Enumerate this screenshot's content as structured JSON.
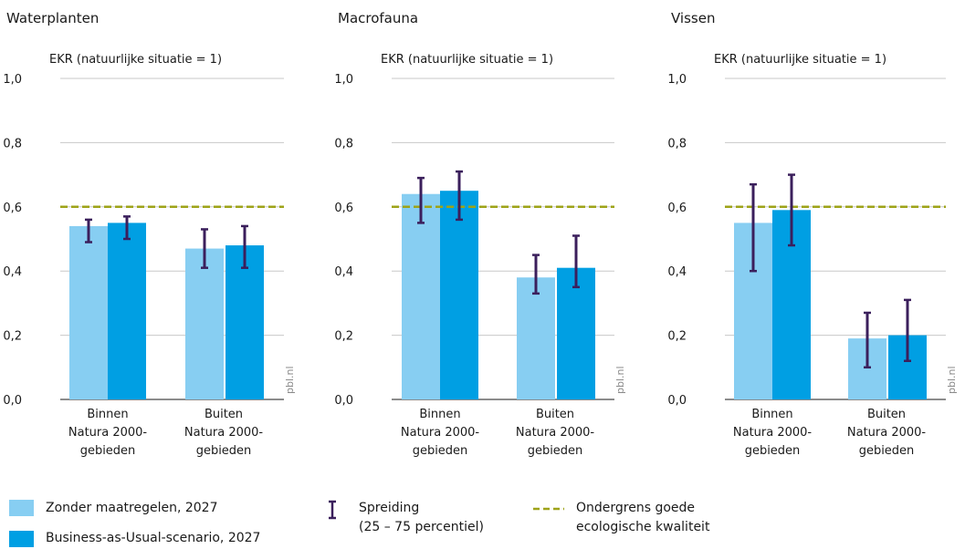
{
  "legend": {
    "scenario1": "Zonder maatregelen, 2027",
    "scenario2": "Business-as-Usual-scenario, 2027",
    "spread_line1": "Spreiding",
    "spread_line2": "(25 – 75 percentiel)",
    "threshold_line1": "Ondergrens goede",
    "threshold_line2": "ecologische kwaliteit"
  },
  "colors": {
    "scenario1": "#87CEF2",
    "scenario2": "#009FE3",
    "errorbar": "#3B1F5C",
    "threshold": "#9EA318",
    "grid": "#C8C8C8",
    "axis": "#1a1a1a"
  },
  "source_label": "pbl.nl",
  "chart_data": [
    {
      "type": "bar",
      "title": "Waterplanten",
      "ylabel": "EKR (natuurlijke situatie = 1)",
      "ylim": [
        0,
        1
      ],
      "yticks": [
        "0,0",
        "0,2",
        "0,4",
        "0,6",
        "0,8",
        "1,0"
      ],
      "categories": [
        [
          "Binnen",
          "Natura 2000-",
          "gebieden"
        ],
        [
          "Buiten",
          "Natura 2000-",
          "gebieden"
        ]
      ],
      "threshold": 0.6,
      "series": [
        {
          "name": "Zonder maatregelen, 2027",
          "values": [
            0.54,
            0.47
          ],
          "low": [
            0.49,
            0.41
          ],
          "high": [
            0.56,
            0.53
          ]
        },
        {
          "name": "Business-as-Usual-scenario, 2027",
          "values": [
            0.55,
            0.48
          ],
          "low": [
            0.5,
            0.41
          ],
          "high": [
            0.57,
            0.54
          ]
        }
      ]
    },
    {
      "type": "bar",
      "title": "Macrofauna",
      "ylabel": "EKR (natuurlijke situatie = 1)",
      "ylim": [
        0,
        1
      ],
      "yticks": [
        "0,0",
        "0,2",
        "0,4",
        "0,6",
        "0,8",
        "1,0"
      ],
      "categories": [
        [
          "Binnen",
          "Natura 2000-",
          "gebieden"
        ],
        [
          "Buiten",
          "Natura 2000-",
          "gebieden"
        ]
      ],
      "threshold": 0.6,
      "series": [
        {
          "name": "Zonder maatregelen, 2027",
          "values": [
            0.64,
            0.38
          ],
          "low": [
            0.55,
            0.33
          ],
          "high": [
            0.69,
            0.45
          ]
        },
        {
          "name": "Business-as-Usual-scenario, 2027",
          "values": [
            0.65,
            0.41
          ],
          "low": [
            0.56,
            0.35
          ],
          "high": [
            0.71,
            0.51
          ]
        }
      ]
    },
    {
      "type": "bar",
      "title": "Vissen",
      "ylabel": "EKR (natuurlijke situatie = 1)",
      "ylim": [
        0,
        1
      ],
      "yticks": [
        "0,0",
        "0,2",
        "0,4",
        "0,6",
        "0,8",
        "1,0"
      ],
      "categories": [
        [
          "Binnen",
          "Natura 2000-",
          "gebieden"
        ],
        [
          "Buiten",
          "Natura 2000-",
          "gebieden"
        ]
      ],
      "threshold": 0.6,
      "series": [
        {
          "name": "Zonder maatregelen, 2027",
          "values": [
            0.55,
            0.19
          ],
          "low": [
            0.4,
            0.1
          ],
          "high": [
            0.67,
            0.27
          ]
        },
        {
          "name": "Business-as-Usual-scenario, 2027",
          "values": [
            0.59,
            0.2
          ],
          "low": [
            0.48,
            0.12
          ],
          "high": [
            0.7,
            0.31
          ]
        }
      ]
    }
  ]
}
